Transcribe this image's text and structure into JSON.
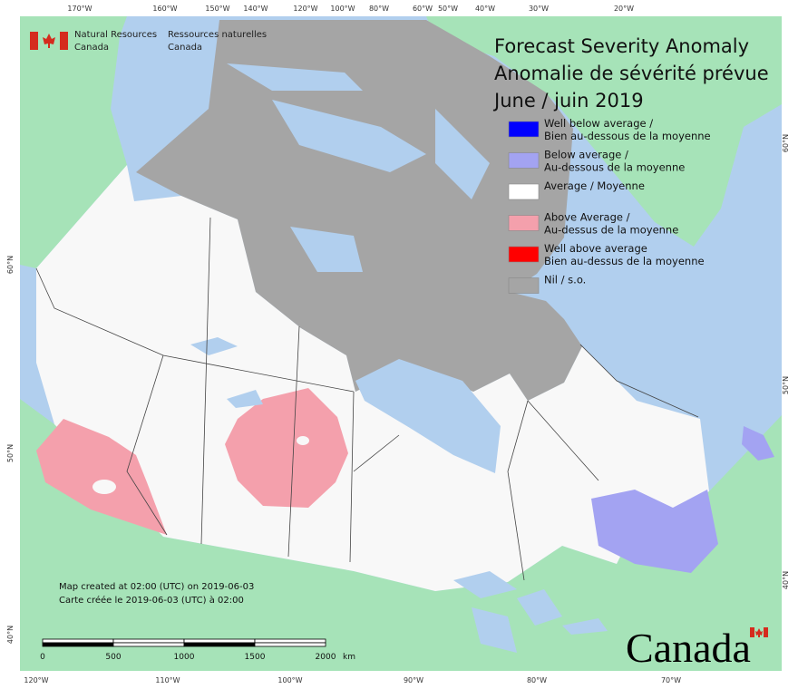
{
  "header": {
    "org_en": [
      "Natural Resources",
      "Canada"
    ],
    "org_fr": [
      "Ressources naturelles",
      "Canada"
    ]
  },
  "title": {
    "line1": "Forecast Severity Anomaly",
    "line2": "Anomalie de sévérité prévue",
    "line3": "June / juin 2019"
  },
  "legend": [
    {
      "label": [
        "Well below average /",
        "Bien au-dessous de la moyenne"
      ],
      "color": "#0000ff"
    },
    {
      "label": [
        "Below average /",
        "Au-dessous de la moyenne"
      ],
      "color": "#a3a3f2"
    },
    {
      "label": [
        "Average / Moyenne"
      ],
      "color": "#ffffff"
    },
    {
      "label": [
        "Above Average /",
        "Au-dessus de la moyenne"
      ],
      "color": "#f4a0ac"
    },
    {
      "label": [
        "Well above average",
        "Bien au-dessus de la moyenne"
      ],
      "color": "#ff0000"
    },
    {
      "label": [
        "Nil / s.o."
      ],
      "color": "#a5a5a5"
    }
  ],
  "graticule": {
    "top": [
      "170°W",
      "160°W",
      "150°W",
      "140°W",
      "120°W",
      "100°W",
      "80°W",
      "60°W",
      "50°W",
      "40°W",
      "30°W",
      "20°W"
    ],
    "bottom": [
      "120°W",
      "110°W",
      "100°W",
      "90°W",
      "80°W",
      "70°W"
    ],
    "left": [
      "60°N",
      "50°N",
      "40°N"
    ],
    "right": [
      "60°N",
      "50°N",
      "40°N"
    ]
  },
  "footer": {
    "created_en": "Map created at 02:00 (UTC) on 2019-06-03",
    "created_fr": "Carte créée le 2019-06-03 (UTC) à 02:00"
  },
  "scale_bar": {
    "labels": [
      "0",
      "500",
      "1000",
      "1500",
      "2000"
    ],
    "unit": "km"
  },
  "wordmark": "Canada"
}
